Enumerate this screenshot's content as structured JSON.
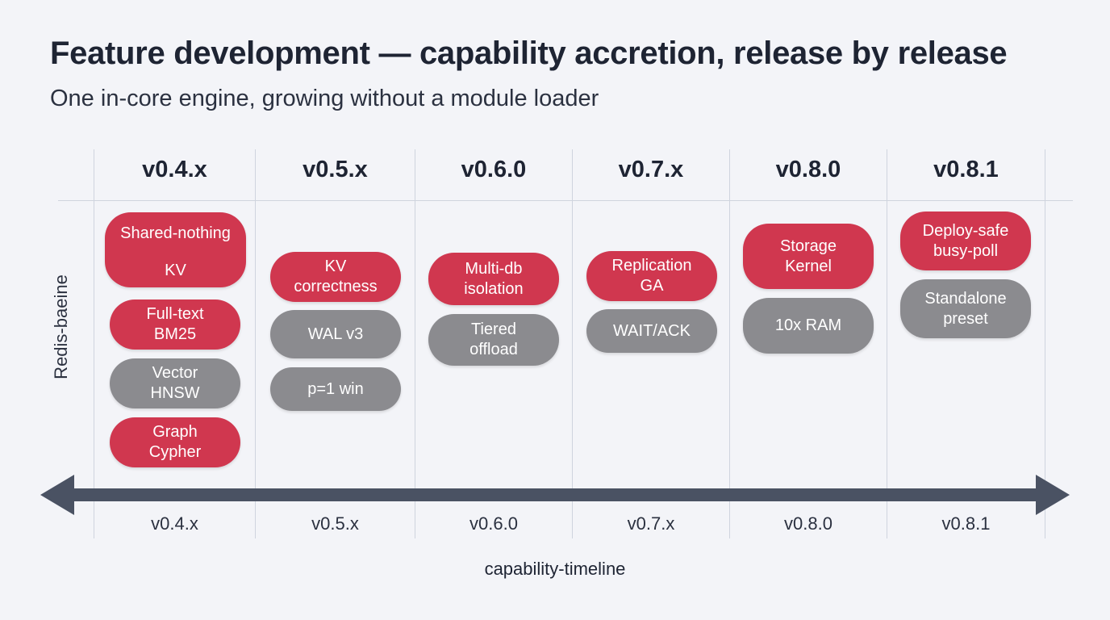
{
  "title": "Feature development — capability accretion, release by release",
  "subtitle": "One in-core engine, growing without a module loader",
  "row_label": "Redis-baeine",
  "axis_title": "capability-timeline",
  "colors": {
    "feature": "#d0374f",
    "infra": "#8b8b8f",
    "axis": "#4a5263"
  },
  "columns": [
    {
      "header": "v0.4.x",
      "tick": "v0.4.x"
    },
    {
      "header": "v0.5.x",
      "tick": "v0.5.x"
    },
    {
      "header": "v0.6.0",
      "tick": "v0.6.0"
    },
    {
      "header": "v0.7.x",
      "tick": "v0.7.x"
    },
    {
      "header": "v0.8.0",
      "tick": "v0.8.0"
    },
    {
      "header": "v0.8.1",
      "tick": "v0.8.1"
    }
  ],
  "pills": {
    "c0": [
      {
        "top": "Shared-nothing",
        "bottom": "KV",
        "color": "red"
      },
      {
        "text": "Full-text\nBM25",
        "color": "red"
      },
      {
        "text": "Vector\nHNSW",
        "color": "gray"
      },
      {
        "text": "Graph\nCypher",
        "color": "red"
      }
    ],
    "c1": [
      {
        "text": "KV\ncorrectness",
        "color": "red"
      },
      {
        "text": "WAL v3",
        "color": "gray"
      },
      {
        "text": "p=1 win",
        "color": "gray"
      }
    ],
    "c2": [
      {
        "text": "Multi-db\nisolation",
        "color": "red"
      },
      {
        "text": "Tiered\noffload",
        "color": "gray"
      }
    ],
    "c3": [
      {
        "text": "Replication\nGA",
        "color": "red"
      },
      {
        "text": "WAIT/ACK",
        "color": "gray"
      }
    ],
    "c4": [
      {
        "text": "Storage\nKernel",
        "color": "red"
      },
      {
        "text": "10x RAM",
        "color": "gray"
      }
    ],
    "c5": [
      {
        "text": "Deploy-safe\nbusy-poll",
        "color": "red"
      },
      {
        "text": "Standalone\npreset",
        "color": "gray"
      }
    ]
  }
}
